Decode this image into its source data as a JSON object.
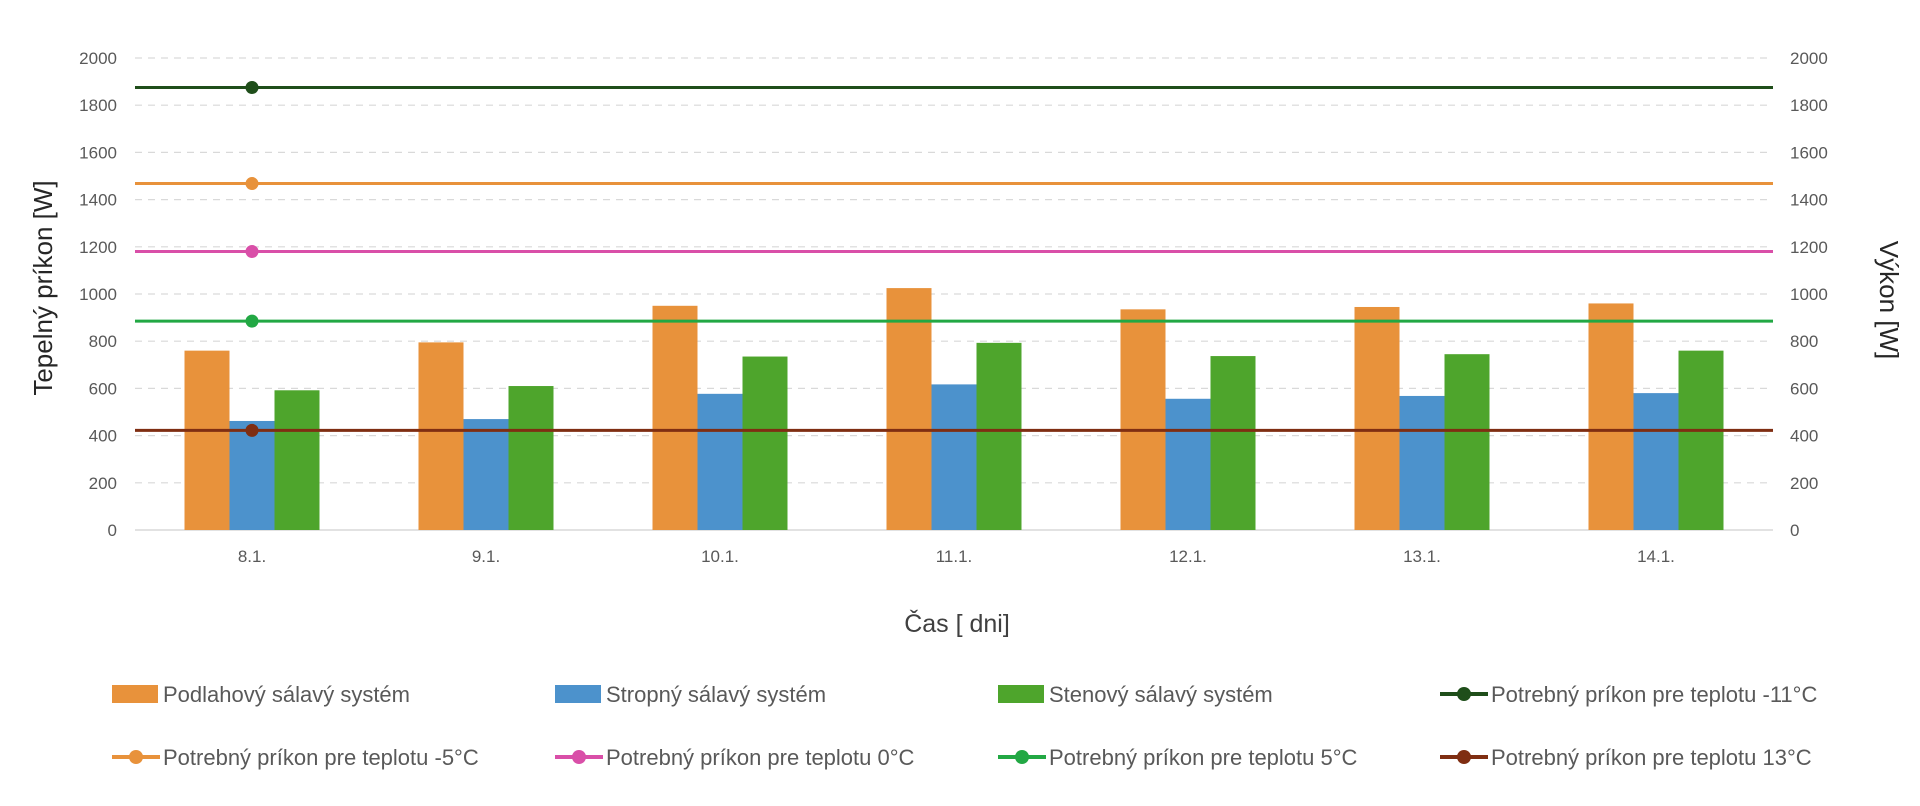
{
  "chart_data": {
    "type": "bar",
    "title": "",
    "xlabel": "Čas [ dni]",
    "ylabel": "Tepelný príkon [W]",
    "y2label": "Výkon [W]",
    "ylim": [
      0,
      2000
    ],
    "y2lim": [
      0,
      2000
    ],
    "yticks": [
      "0",
      "200",
      "400",
      "600",
      "800",
      "1000",
      "1200",
      "1400",
      "1600",
      "1800",
      "2000"
    ],
    "y2ticks": [
      "0",
      "200",
      "400",
      "600",
      "800",
      "1000",
      "1200",
      "1400",
      "1600",
      "1800",
      "2000"
    ],
    "categories": [
      "8.1.",
      "9.1.",
      "10.1.",
      "11.1.",
      "12.1.",
      "13.1.",
      "14.1."
    ],
    "grid": "horizontal dashed",
    "legend_position": "bottom",
    "bar_series": [
      {
        "name": "Podlahový sálavý systém",
        "color": "#E8923B",
        "values": [
          760,
          795,
          950,
          1025,
          935,
          945,
          960
        ]
      },
      {
        "name": "Stropný sálavý systém",
        "color": "#4C92CC",
        "values": [
          462,
          470,
          577,
          617,
          556,
          568,
          580
        ]
      },
      {
        "name": "Stenový sálavý systém",
        "color": "#4EA52C",
        "values": [
          592,
          610,
          735,
          793,
          737,
          745,
          760
        ]
      }
    ],
    "line_series": [
      {
        "name": "Potrebný príkon pre teplotu -11°C",
        "color": "#1F4E1A",
        "value": 1875,
        "marker_at": "8.1."
      },
      {
        "name": "Potrebný príkon pre teplotu -5°C",
        "color": "#E8923B",
        "value": 1468,
        "marker_at": "8.1."
      },
      {
        "name": "Potrebný príkon pre teplotu 0°C",
        "color": "#D94FA8",
        "value": 1180,
        "marker_at": "8.1."
      },
      {
        "name": "Potrebný príkon pre teplotu 5°C",
        "color": "#22A844",
        "value": 885,
        "marker_at": "8.1."
      },
      {
        "name": "Potrebný príkon pre teplotu 13°C",
        "color": "#7F2E12",
        "value": 422,
        "marker_at": "8.1."
      }
    ]
  }
}
